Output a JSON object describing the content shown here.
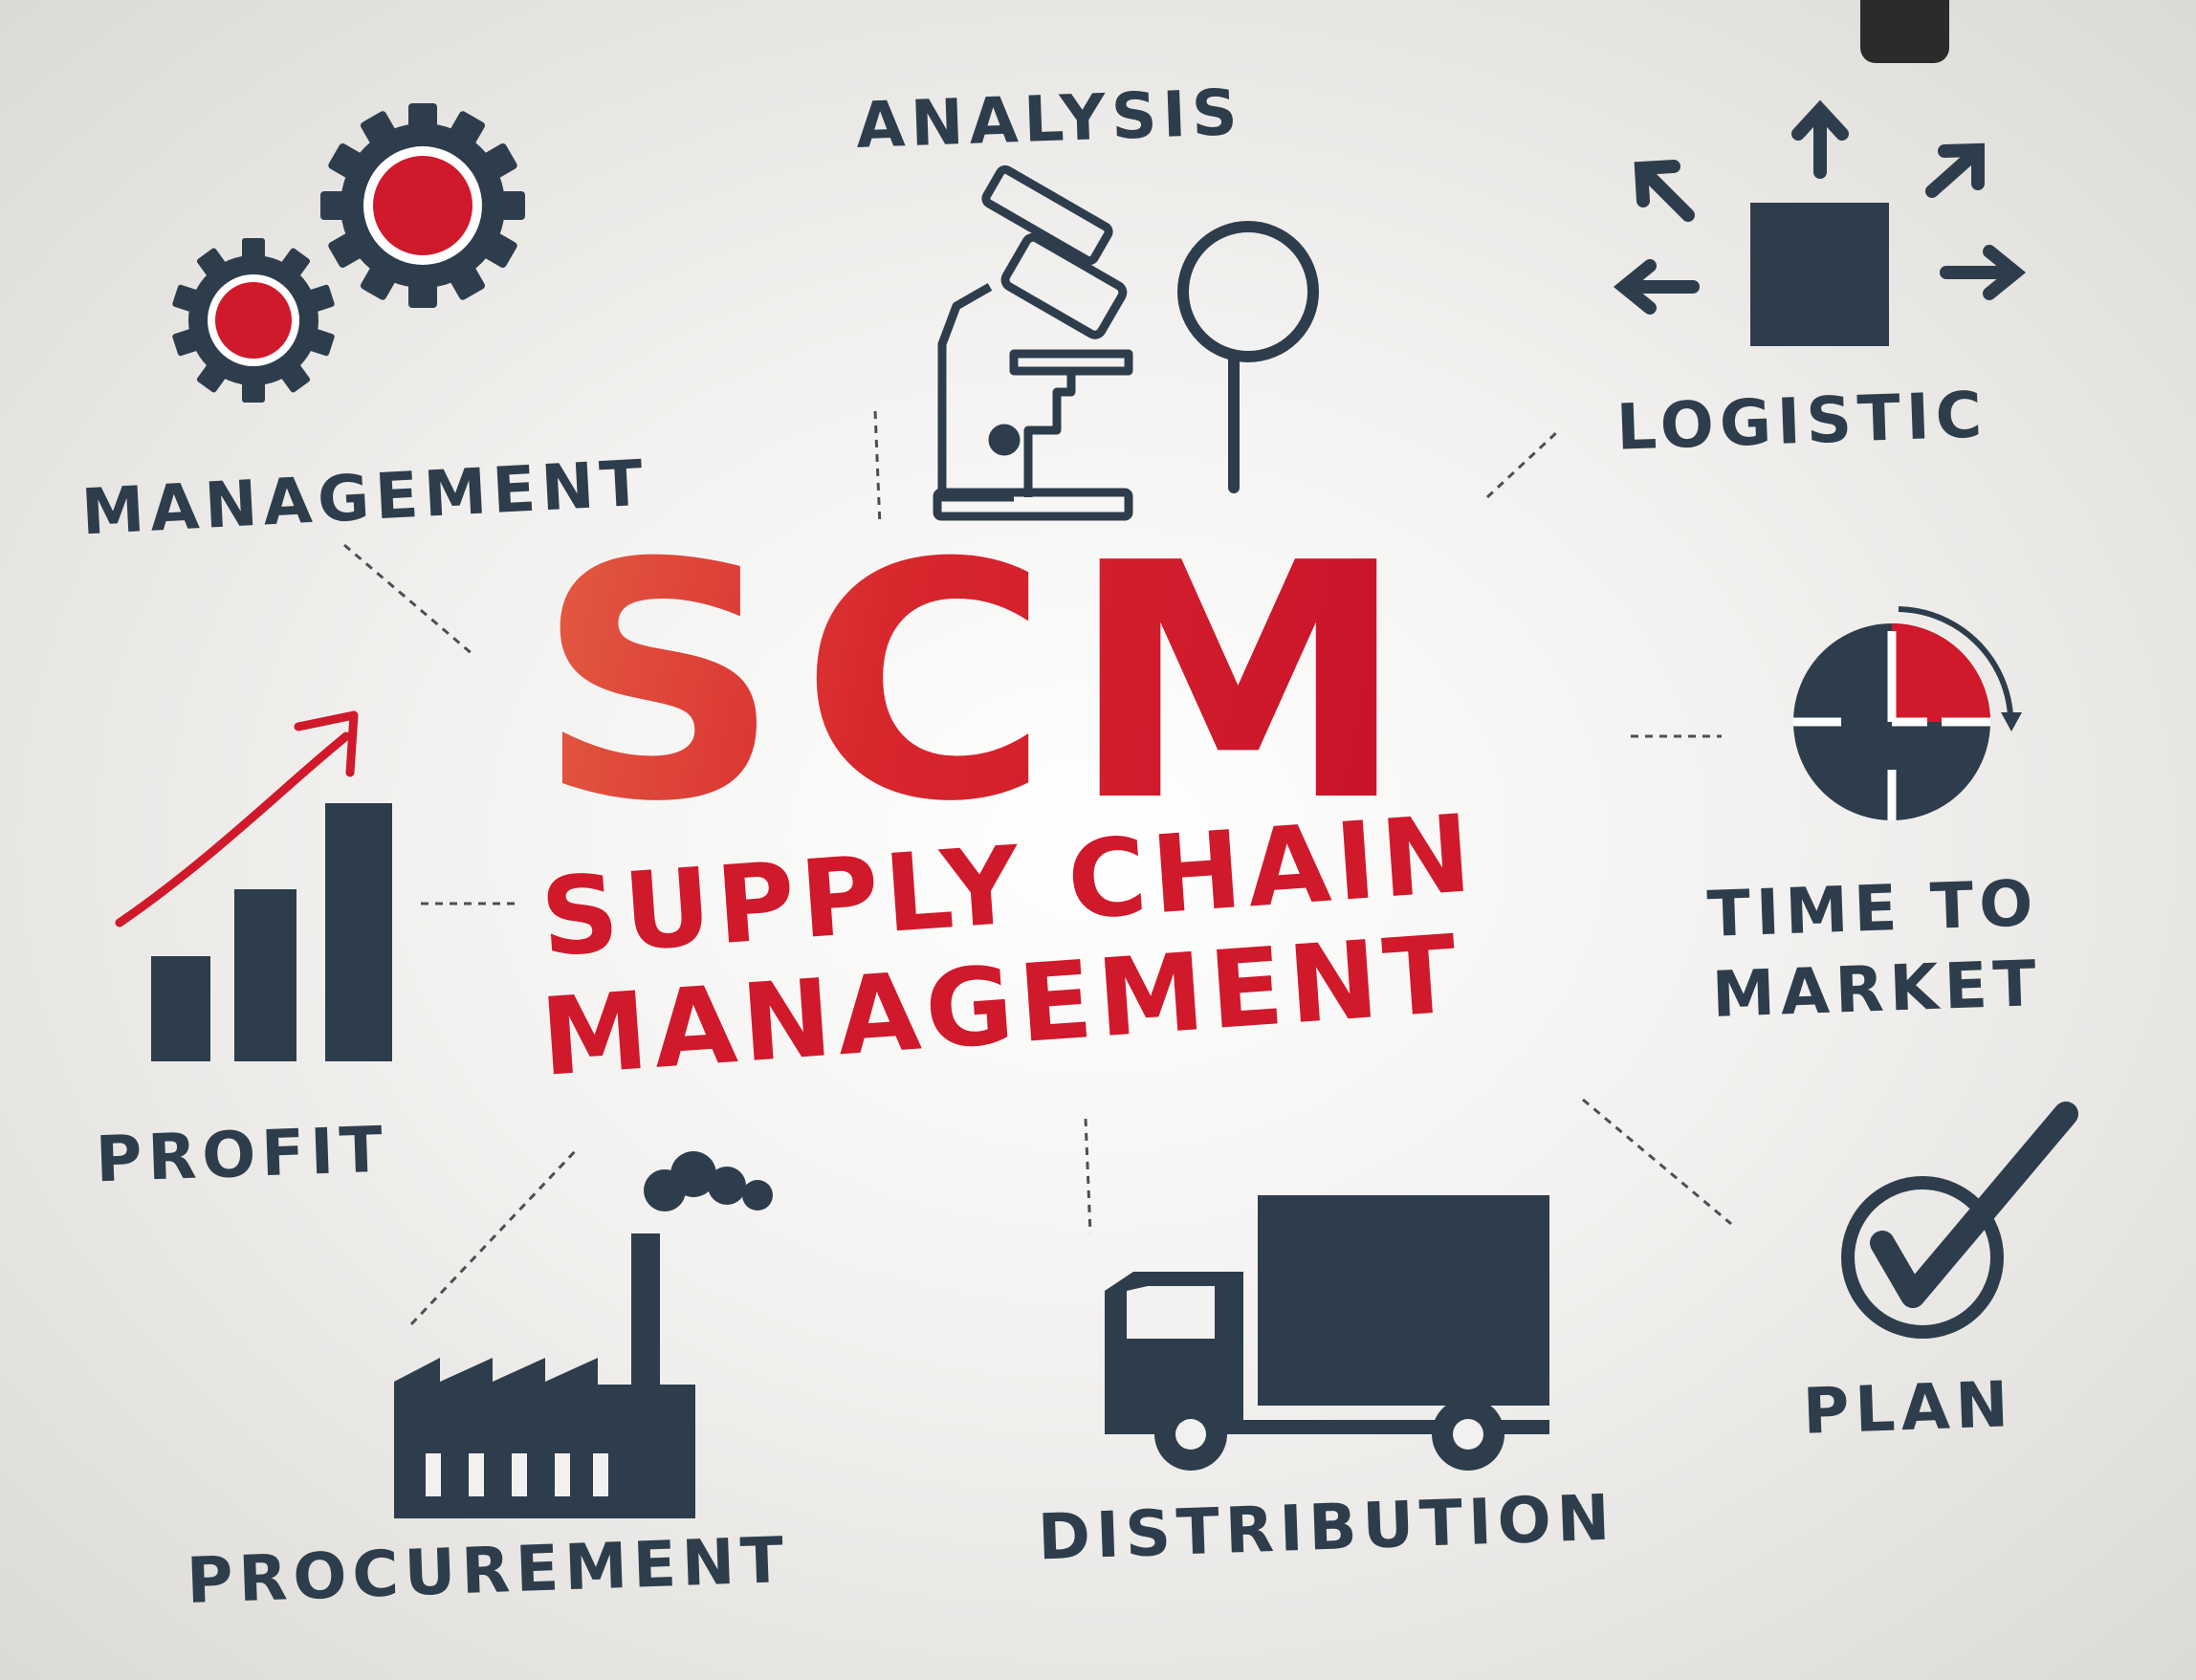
{
  "center": {
    "title": "SCM",
    "subtitle_line1": "SUPPLY CHAIN",
    "subtitle_line2": "MANAGEMENT"
  },
  "labels": {
    "analysis": "ANALYSIS",
    "management": "MANAGEMENT",
    "logistic": "LOGISTIC",
    "time_to_market_line1": "TIME TO",
    "time_to_market_line2": "MARKET",
    "profit": "PROFIT",
    "plan": "PLAN",
    "procurement": "PROCUREMENT",
    "distribution": "DISTRIBUTION"
  },
  "icons": [
    "gears-icon",
    "microscope-icon",
    "magnifier-icon",
    "logistic-box-arrows-icon",
    "clock-icon",
    "bar-chart-growth-icon",
    "factory-icon",
    "truck-icon",
    "checkmark-icon"
  ],
  "colors": {
    "accent_red": "#d0192b",
    "dark_slate": "#2e3d4c",
    "background": "#f2f1ef"
  }
}
